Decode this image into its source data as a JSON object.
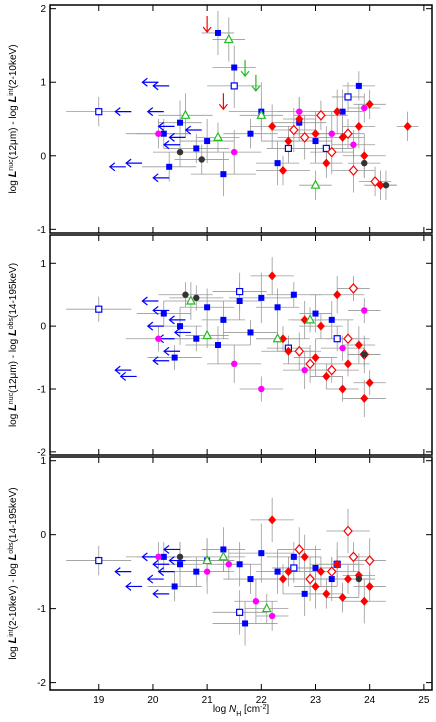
{
  "chart_data": [
    {
      "type": "scatter",
      "ylabel": [
        "log ",
        "L",
        "nuc",
        "(12μm) - log ",
        "L",
        "int",
        "(2-10keV)"
      ],
      "xlim": [
        18.1,
        25.15
      ],
      "xticks": [
        19,
        20,
        21,
        22,
        23,
        24,
        25
      ],
      "ylim": [
        -1.05,
        2.05
      ],
      "yticks": [
        -1,
        0,
        1,
        2
      ],
      "series": [
        {
          "color": "#0000ff",
          "marker": "square",
          "x": [
            20.2,
            20.5,
            20.8,
            21.0,
            21.2,
            21.5,
            21.8,
            22.0,
            22.3,
            22.7,
            23.0,
            23.5,
            23.8,
            20.3,
            21.3
          ],
          "values": [
            0.3,
            0.45,
            0.1,
            0.2,
            1.67,
            1.2,
            0.3,
            0.6,
            -0.1,
            0.45,
            0.2,
            0.6,
            0.95,
            -0.15,
            -0.25
          ],
          "xerr": [
            0.5,
            0.4,
            0.6,
            0.5,
            0.3,
            0.4,
            0.5,
            0.6,
            0.4,
            0.5,
            0.3,
            0.4,
            0.3,
            0.5,
            0.6
          ],
          "yerr": [
            0.2,
            0.3,
            0.2,
            0.3,
            0.3,
            0.3,
            0.2,
            0.4,
            0.3,
            0.2,
            0.3,
            0.3,
            0.2,
            0.2,
            0.3
          ]
        },
        {
          "color": "#0000ff",
          "marker": "square-open",
          "x": [
            19.0,
            21.5,
            22.5,
            23.2,
            23.6
          ],
          "values": [
            0.6,
            0.95,
            0.1,
            0.1,
            0.8
          ],
          "xerr": [
            0.6,
            0.5,
            0.4,
            0.5,
            0.3
          ],
          "yerr": [
            0.2,
            0.3,
            0.2,
            0.3,
            0.2
          ]
        },
        {
          "color": "#0000ff",
          "marker": "arrow-left",
          "x": [
            19.6,
            19.8,
            20.1,
            20.3,
            20.2,
            20.4,
            20.5,
            20.3,
            20.6,
            20.9,
            19.5
          ],
          "values": [
            0.6,
            -0.1,
            1.0,
            0.95,
            0.6,
            0.4,
            0.15,
            -0.3,
            0.25,
            0.35,
            -0.15
          ]
        },
        {
          "color": "#ff0000",
          "marker": "diamond",
          "x": [
            22.2,
            22.5,
            22.7,
            23.0,
            23.2,
            23.4,
            23.5,
            23.8,
            23.9,
            24.0,
            22.4,
            24.2,
            24.7
          ],
          "values": [
            0.4,
            0.2,
            0.5,
            0.3,
            -0.1,
            0.6,
            0.25,
            0.4,
            0.0,
            0.7,
            -0.2,
            -0.4,
            0.4
          ],
          "xerr": [
            0.4,
            0.5,
            0.3,
            0.4,
            0.3,
            0.5,
            0.4,
            0.3,
            0.4,
            0.3,
            0.5,
            0.3,
            0.2
          ],
          "yerr": [
            0.3,
            0.2,
            0.3,
            0.3,
            0.2,
            0.3,
            0.2,
            0.3,
            0.3,
            0.2,
            0.2,
            0.2,
            0.2
          ]
        },
        {
          "color": "#ff0000",
          "marker": "diamond-open",
          "x": [
            22.6,
            23.1,
            23.3,
            23.6,
            23.7,
            24.1,
            22.8
          ],
          "values": [
            0.35,
            0.55,
            0.05,
            0.3,
            -0.2,
            -0.35,
            0.25
          ],
          "xerr": [
            0.4,
            0.5,
            0.4,
            0.3,
            0.4,
            0.3,
            0.5
          ],
          "yerr": [
            0.3,
            0.2,
            0.3,
            0.2,
            0.3,
            0.2,
            0.3
          ]
        },
        {
          "color": "#ff00ff",
          "marker": "circle",
          "x": [
            20.1,
            21.5,
            22.7,
            23.3,
            23.9,
            23.7
          ],
          "values": [
            0.3,
            0.05,
            0.6,
            0.3,
            0.65,
            0.15
          ],
          "xerr": [
            0.6,
            0.5,
            0.4,
            0.4,
            0.3,
            0.4
          ],
          "yerr": [
            0.2,
            0.3,
            0.2,
            0.3,
            0.2,
            0.2
          ]
        },
        {
          "color": "#22bb22",
          "marker": "triangle-open",
          "x": [
            20.6,
            21.2,
            21.4,
            22.0,
            23.0
          ],
          "values": [
            0.55,
            0.25,
            1.58,
            0.55,
            -0.4
          ],
          "xerr": [
            0.5,
            0.4,
            0.3,
            0.4,
            0.3
          ],
          "yerr": [
            0.3,
            0.2,
            0.3,
            0.2,
            0.2
          ]
        },
        {
          "color": "#333333",
          "marker": "circle",
          "x": [
            20.5,
            20.9,
            23.9,
            24.3
          ],
          "values": [
            0.05,
            -0.05,
            -0.1,
            -0.4
          ],
          "xerr": [
            0.5,
            0.5,
            0.3,
            0.2
          ],
          "yerr": [
            0.2,
            0.2,
            0.2,
            0.2
          ]
        },
        {
          "color": "#ff0000",
          "marker": "arrow-down",
          "x": [
            21.0,
            21.3
          ],
          "values": [
            1.9,
            0.85
          ]
        },
        {
          "color": "#22bb22",
          "marker": "arrow-down",
          "x": [
            21.7,
            21.9
          ],
          "values": [
            1.3,
            1.1
          ]
        }
      ]
    },
    {
      "type": "scatter",
      "ylabel": [
        "log ",
        "L",
        "nuc",
        "(12μm) - log ",
        "L",
        "obs",
        "(14-195keV)"
      ],
      "xlim": [
        18.1,
        25.15
      ],
      "xticks": [
        19,
        20,
        21,
        22,
        23,
        24,
        25
      ],
      "ylim": [
        -2.05,
        1.45
      ],
      "yticks": [
        -2,
        -1,
        0,
        1
      ],
      "series": [
        {
          "color": "#0000ff",
          "marker": "square",
          "x": [
            20.2,
            20.5,
            20.8,
            21.0,
            21.3,
            21.6,
            21.8,
            22.0,
            22.3,
            22.6,
            23.0,
            23.3,
            20.4,
            21.2
          ],
          "values": [
            0.2,
            0.0,
            -0.2,
            0.3,
            0.1,
            0.4,
            -0.1,
            0.45,
            0.3,
            0.5,
            0.2,
            0.1,
            -0.5,
            -0.3
          ],
          "xerr": [
            0.5,
            0.4,
            0.6,
            0.5,
            0.4,
            0.4,
            0.5,
            0.6,
            0.4,
            0.5,
            0.3,
            0.4,
            0.5,
            0.6
          ],
          "yerr": [
            0.2,
            0.3,
            0.2,
            0.3,
            0.3,
            0.3,
            0.2,
            0.4,
            0.3,
            0.2,
            0.3,
            0.3,
            0.2,
            0.3
          ]
        },
        {
          "color": "#0000ff",
          "marker": "square-open",
          "x": [
            19.0,
            21.6,
            22.5,
            23.4
          ],
          "values": [
            0.27,
            0.55,
            -0.35,
            -0.2
          ],
          "xerr": [
            0.6,
            0.5,
            0.4,
            0.4
          ],
          "yerr": [
            0.2,
            0.3,
            0.2,
            0.2
          ]
        },
        {
          "color": "#0000ff",
          "marker": "arrow-left",
          "x": [
            19.6,
            19.7,
            20.1,
            20.3,
            20.2,
            20.4,
            20.5,
            20.3,
            20.6,
            20.7
          ],
          "values": [
            -0.7,
            -0.8,
            0.4,
            0.25,
            0.0,
            -0.2,
            -0.4,
            -0.55,
            0.1,
            -0.1
          ]
        },
        {
          "color": "#ff0000",
          "marker": "diamond",
          "x": [
            22.2,
            22.5,
            22.8,
            23.0,
            23.2,
            23.4,
            23.6,
            23.8,
            23.9,
            24.0,
            22.4,
            23.5,
            23.1
          ],
          "values": [
            0.8,
            -0.4,
            0.1,
            -0.5,
            -0.8,
            0.5,
            -0.6,
            -0.3,
            -1.15,
            -0.9,
            -0.2,
            -1.0,
            0.0
          ],
          "xerr": [
            0.4,
            0.5,
            0.3,
            0.4,
            0.3,
            0.5,
            0.4,
            0.3,
            0.4,
            0.3,
            0.5,
            0.3,
            0.4
          ],
          "yerr": [
            0.3,
            0.2,
            0.3,
            0.3,
            0.2,
            0.3,
            0.2,
            0.3,
            0.3,
            0.2,
            0.2,
            0.2,
            0.2
          ]
        },
        {
          "color": "#ff0000",
          "marker": "diamond-open",
          "x": [
            22.7,
            23.3,
            23.6,
            23.7,
            23.9,
            22.9
          ],
          "values": [
            -0.4,
            -0.7,
            -0.2,
            0.6,
            -0.45,
            -0.6
          ],
          "xerr": [
            0.4,
            0.5,
            0.4,
            0.3,
            0.3,
            0.5
          ],
          "yerr": [
            0.3,
            0.2,
            0.3,
            0.2,
            0.3,
            0.3
          ]
        },
        {
          "color": "#ff00ff",
          "marker": "circle",
          "x": [
            20.1,
            21.5,
            22.0,
            22.8,
            23.9,
            23.5
          ],
          "values": [
            -0.2,
            -0.6,
            -1.0,
            -0.7,
            0.25,
            -0.35
          ],
          "xerr": [
            0.6,
            0.5,
            0.4,
            0.4,
            0.3,
            0.4
          ],
          "yerr": [
            0.2,
            0.3,
            0.2,
            0.3,
            0.2,
            0.2
          ]
        },
        {
          "color": "#22bb22",
          "marker": "triangle-open",
          "x": [
            20.7,
            21.0,
            22.3,
            22.9
          ],
          "values": [
            0.4,
            -0.15,
            -0.2,
            0.1
          ],
          "xerr": [
            0.5,
            0.4,
            0.4,
            0.3
          ],
          "yerr": [
            0.3,
            0.2,
            0.2,
            0.2
          ]
        },
        {
          "color": "#333333",
          "marker": "circle",
          "x": [
            20.6,
            20.8,
            23.9
          ],
          "values": [
            0.5,
            0.45,
            -0.45
          ],
          "xerr": [
            0.5,
            0.5,
            0.3
          ],
          "yerr": [
            0.2,
            0.2,
            0.2
          ]
        }
      ]
    },
    {
      "type": "scatter",
      "ylabel": [
        "log ",
        "L",
        "int",
        "(2-10keV) - log ",
        "L",
        "obs",
        "(14-195keV)"
      ],
      "xlabel": {
        "pre": "log ",
        "var": "N",
        "sub": "H",
        "unit": " [cm",
        "exp": "-2",
        "end": "]"
      },
      "xlim": [
        18.1,
        25.15
      ],
      "xticks": [
        19,
        20,
        21,
        22,
        23,
        24,
        25
      ],
      "ylim": [
        -2.1,
        1.05
      ],
      "yticks": [
        -2,
        -1,
        0,
        1
      ],
      "series": [
        {
          "color": "#0000ff",
          "marker": "square",
          "x": [
            20.2,
            20.5,
            20.8,
            21.0,
            21.3,
            21.6,
            21.8,
            22.0,
            22.3,
            22.6,
            23.0,
            23.3,
            20.4,
            21.7,
            22.8
          ],
          "values": [
            -0.3,
            -0.4,
            -0.5,
            -0.35,
            -0.2,
            -0.4,
            -0.6,
            -0.25,
            -0.5,
            -0.3,
            -0.45,
            -0.6,
            -0.7,
            -1.2,
            -0.8
          ],
          "xerr": [
            0.5,
            0.4,
            0.6,
            0.5,
            0.4,
            0.4,
            0.5,
            0.6,
            0.4,
            0.5,
            0.3,
            0.4,
            0.5,
            0.6,
            0.4
          ],
          "yerr": [
            0.2,
            0.3,
            0.2,
            0.3,
            0.3,
            0.3,
            0.2,
            0.4,
            0.3,
            0.2,
            0.3,
            0.3,
            0.2,
            0.3,
            0.3
          ]
        },
        {
          "color": "#0000ff",
          "marker": "square-open",
          "x": [
            19.0,
            21.6,
            22.6,
            23.4
          ],
          "values": [
            -0.35,
            -1.05,
            -0.45,
            -0.4
          ],
          "xerr": [
            0.6,
            0.5,
            0.4,
            0.4
          ],
          "yerr": [
            0.2,
            0.3,
            0.2,
            0.2
          ]
        },
        {
          "color": "#0000ff",
          "marker": "arrow-left",
          "x": [
            19.6,
            19.8,
            20.1,
            20.3,
            20.2,
            20.4,
            20.5,
            20.3,
            20.6
          ],
          "values": [
            -0.5,
            -0.7,
            -0.3,
            -0.4,
            -0.6,
            -0.5,
            -0.2,
            -0.8,
            -0.35
          ]
        },
        {
          "color": "#ff0000",
          "marker": "diamond",
          "x": [
            22.2,
            22.5,
            22.8,
            23.0,
            23.2,
            23.4,
            23.6,
            23.8,
            23.9,
            24.0,
            22.4,
            23.5,
            23.1
          ],
          "values": [
            0.2,
            -0.5,
            -0.3,
            -0.7,
            -0.8,
            -0.4,
            -0.6,
            -0.55,
            -0.9,
            -0.7,
            -0.6,
            -0.85,
            -0.5
          ],
          "xerr": [
            0.4,
            0.5,
            0.3,
            0.4,
            0.3,
            0.5,
            0.4,
            0.3,
            0.4,
            0.3,
            0.5,
            0.3,
            0.4
          ],
          "yerr": [
            0.3,
            0.2,
            0.3,
            0.3,
            0.2,
            0.3,
            0.2,
            0.3,
            0.3,
            0.2,
            0.2,
            0.2,
            0.2
          ]
        },
        {
          "color": "#ff0000",
          "marker": "diamond-open",
          "x": [
            22.7,
            23.3,
            23.6,
            23.7,
            24.0,
            22.9
          ],
          "values": [
            -0.2,
            -0.5,
            0.05,
            -0.3,
            -0.35,
            -0.6
          ],
          "xerr": [
            0.4,
            0.5,
            0.4,
            0.3,
            0.3,
            0.5
          ],
          "yerr": [
            0.3,
            0.2,
            0.3,
            0.2,
            0.3,
            0.3
          ]
        },
        {
          "color": "#ff00ff",
          "marker": "circle",
          "x": [
            20.1,
            21.0,
            21.4,
            21.9,
            22.2
          ],
          "values": [
            -0.3,
            -0.5,
            -0.4,
            -0.9,
            -1.1
          ],
          "xerr": [
            0.6,
            0.5,
            0.4,
            0.4,
            0.3
          ],
          "yerr": [
            0.2,
            0.3,
            0.2,
            0.3,
            0.2
          ]
        },
        {
          "color": "#22bb22",
          "marker": "triangle-open",
          "x": [
            21.0,
            21.3,
            22.1
          ],
          "values": [
            -0.35,
            -0.3,
            -1.0
          ],
          "xerr": [
            0.5,
            0.4,
            0.4
          ],
          "yerr": [
            0.3,
            0.2,
            0.2
          ]
        },
        {
          "color": "#333333",
          "marker": "circle",
          "x": [
            20.5,
            23.8
          ],
          "values": [
            -0.3,
            -0.6
          ],
          "xerr": [
            0.5,
            0.3
          ],
          "yerr": [
            0.2,
            0.2
          ]
        }
      ]
    }
  ]
}
